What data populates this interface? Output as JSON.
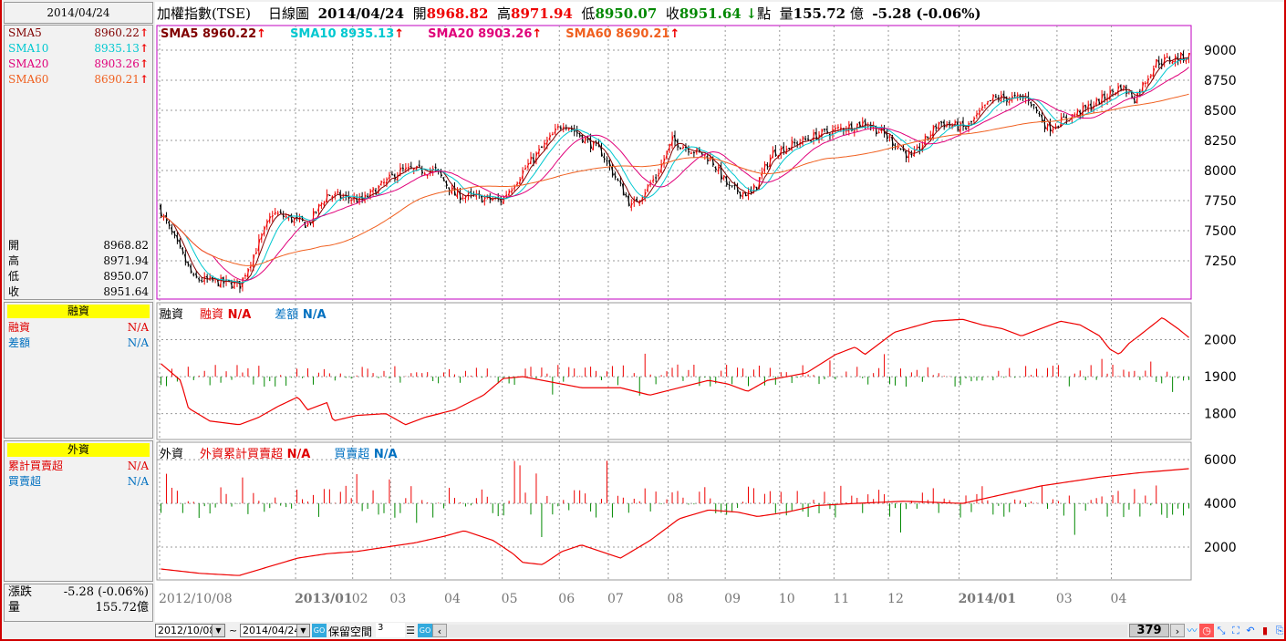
{
  "header": {
    "date": "2014/04/24",
    "index_name": "加權指數(TSE)",
    "chart_type": "日線圖",
    "date_bold": "2014/04/24",
    "open_label": "開",
    "open": "8968.82",
    "high_label": "高",
    "high": "8971.94",
    "low_label": "低",
    "low": "8950.07",
    "close_label": "收",
    "close": "8951.64",
    "close_arrow": "↓",
    "unit_label": "點",
    "vol_label": "量",
    "volume": "155.72",
    "vol_unit": "億",
    "change": "-5.28 (-0.06%)"
  },
  "sma": [
    {
      "name": "SMA5",
      "value": "8960.22",
      "color": "#800000"
    },
    {
      "name": "SMA10",
      "value": "8935.13",
      "color": "#00c8d0"
    },
    {
      "name": "SMA20",
      "value": "8903.26",
      "color": "#e0007a"
    },
    {
      "name": "SMA60",
      "value": "8690.21",
      "color": "#f06020"
    }
  ],
  "arrow_up": "↑",
  "ohlc_panel": [
    {
      "label": "開",
      "value": "8968.82"
    },
    {
      "label": "高",
      "value": "8971.94"
    },
    {
      "label": "低",
      "value": "8950.07"
    },
    {
      "label": "收",
      "value": "8951.64"
    }
  ],
  "margin_panel": {
    "title": "融資",
    "rows": [
      {
        "label": "融資",
        "value": "N/A",
        "color": "#e00000"
      },
      {
        "label": "差額",
        "value": "N/A",
        "color": "#0070c0"
      }
    ],
    "legend_name": "融資",
    "legend": [
      {
        "label": "融資",
        "value": "N/A",
        "color": "#e00000"
      },
      {
        "label": "差額",
        "value": "N/A",
        "color": "#0070c0"
      }
    ]
  },
  "foreign_panel": {
    "title": "外資",
    "rows": [
      {
        "label": "累計買賣超",
        "value": "N/A",
        "color": "#e00000"
      },
      {
        "label": "買賣超",
        "value": "N/A",
        "color": "#0070c0"
      }
    ],
    "legend_name": "外資",
    "legend": [
      {
        "label": "外資累計買賣超",
        "value": "N/A",
        "color": "#e00000"
      },
      {
        "label": "買賣超",
        "value": "N/A",
        "color": "#0070c0"
      }
    ]
  },
  "summary": {
    "change_label": "漲跌",
    "change": "-5.28 (-0.06%)",
    "vol_label": "量",
    "volume": "155.72億"
  },
  "bottom": {
    "start_date": "2012/10/08",
    "tilde": "~",
    "end_date": "2014/04/24",
    "reserve_label": "保留空間",
    "reserve_value": "3",
    "count": "379"
  },
  "chart_data": {
    "type": "candlestick",
    "bars": 379,
    "price_axis": {
      "ticks": [
        9000,
        8750,
        8500,
        8250,
        8000,
        7750,
        7500,
        7250
      ],
      "range": [
        6932,
        9205
      ]
    },
    "margin_axis": {
      "ticks": [
        2000,
        1900,
        1800
      ],
      "range": [
        1730,
        2100
      ]
    },
    "foreign_axis": {
      "ticks": [
        6000,
        4000,
        2000
      ],
      "range": [
        500,
        6800
      ]
    },
    "x_labels": [
      {
        "label": "2012/10/08",
        "bar": 0
      },
      {
        "label": "2013/01",
        "bar": 50,
        "bold": true
      },
      {
        "label": "02",
        "bar": 71
      },
      {
        "label": "03",
        "bar": 85
      },
      {
        "label": "04",
        "bar": 105
      },
      {
        "label": "05",
        "bar": 126
      },
      {
        "label": "06",
        "bar": 147
      },
      {
        "label": "07",
        "bar": 165
      },
      {
        "label": "08",
        "bar": 187
      },
      {
        "label": "09",
        "bar": 208
      },
      {
        "label": "10",
        "bar": 228
      },
      {
        "label": "11",
        "bar": 248
      },
      {
        "label": "12",
        "bar": 268
      },
      {
        "label": "2014/01",
        "bar": 294,
        "bold": true
      },
      {
        "label": "03",
        "bar": 330
      },
      {
        "label": "04",
        "bar": 350
      }
    ],
    "close_keypoints": [
      [
        0,
        7700
      ],
      [
        13,
        7100
      ],
      [
        30,
        7050
      ],
      [
        42,
        7650
      ],
      [
        55,
        7550
      ],
      [
        62,
        7800
      ],
      [
        75,
        7750
      ],
      [
        89,
        8000
      ],
      [
        102,
        8000
      ],
      [
        109,
        7800
      ],
      [
        126,
        7750
      ],
      [
        136,
        8050
      ],
      [
        149,
        8400
      ],
      [
        163,
        8150
      ],
      [
        174,
        7700
      ],
      [
        183,
        7950
      ],
      [
        189,
        8250
      ],
      [
        203,
        8100
      ],
      [
        210,
        7850
      ],
      [
        218,
        7800
      ],
      [
        226,
        8150
      ],
      [
        243,
        8300
      ],
      [
        260,
        8400
      ],
      [
        267,
        8300
      ],
      [
        277,
        8100
      ],
      [
        287,
        8400
      ],
      [
        297,
        8350
      ],
      [
        307,
        8600
      ],
      [
        320,
        8600
      ],
      [
        327,
        8350
      ],
      [
        344,
        8550
      ],
      [
        354,
        8700
      ],
      [
        359,
        8600
      ],
      [
        367,
        8900
      ],
      [
        379,
        8952
      ]
    ],
    "margin_line_keypoints": [
      [
        0,
        1935
      ],
      [
        10,
        1890
      ],
      [
        14,
        1815
      ],
      [
        25,
        1780
      ],
      [
        40,
        1770
      ],
      [
        50,
        1790
      ],
      [
        60,
        1820
      ],
      [
        70,
        1845
      ],
      [
        75,
        1810
      ],
      [
        85,
        1830
      ],
      [
        88,
        1780
      ],
      [
        100,
        1795
      ],
      [
        115,
        1800
      ],
      [
        125,
        1770
      ],
      [
        135,
        1790
      ],
      [
        150,
        1810
      ],
      [
        165,
        1850
      ],
      [
        175,
        1895
      ],
      [
        185,
        1900
      ],
      [
        200,
        1885
      ],
      [
        215,
        1870
      ],
      [
        235,
        1870
      ],
      [
        250,
        1850
      ],
      [
        265,
        1870
      ],
      [
        280,
        1890
      ],
      [
        290,
        1880
      ],
      [
        300,
        1860
      ],
      [
        310,
        1890
      ],
      [
        330,
        1910
      ],
      [
        345,
        1960
      ],
      [
        355,
        1980
      ],
      [
        360,
        1960
      ],
      [
        375,
        2020
      ],
      [
        395,
        2050
      ],
      [
        410,
        2055
      ],
      [
        420,
        2040
      ],
      [
        430,
        2030
      ],
      [
        440,
        2010
      ],
      [
        460,
        2050
      ],
      [
        470,
        2040
      ],
      [
        480,
        2010
      ],
      [
        485,
        1975
      ],
      [
        490,
        1960
      ],
      [
        495,
        1990
      ],
      [
        500,
        2010
      ],
      [
        512,
        2060
      ],
      [
        520,
        2030
      ],
      [
        527,
        2000
      ]
    ],
    "foreign_line_keypoints": [
      [
        0,
        1000
      ],
      [
        20,
        800
      ],
      [
        40,
        700
      ],
      [
        55,
        1100
      ],
      [
        70,
        1500
      ],
      [
        85,
        1700
      ],
      [
        100,
        1800
      ],
      [
        115,
        2000
      ],
      [
        130,
        2200
      ],
      [
        145,
        2500
      ],
      [
        155,
        2750
      ],
      [
        170,
        2300
      ],
      [
        180,
        1700
      ],
      [
        185,
        1300
      ],
      [
        195,
        1200
      ],
      [
        205,
        1800
      ],
      [
        215,
        2100
      ],
      [
        225,
        1800
      ],
      [
        235,
        1500
      ],
      [
        250,
        2300
      ],
      [
        265,
        3300
      ],
      [
        280,
        3700
      ],
      [
        295,
        3600
      ],
      [
        305,
        3400
      ],
      [
        320,
        3600
      ],
      [
        335,
        3900
      ],
      [
        355,
        4000
      ],
      [
        380,
        4100
      ],
      [
        395,
        4050
      ],
      [
        410,
        4000
      ],
      [
        430,
        4400
      ],
      [
        450,
        4800
      ],
      [
        465,
        5000
      ],
      [
        480,
        5200
      ],
      [
        500,
        5400
      ],
      [
        527,
        5600
      ]
    ]
  }
}
